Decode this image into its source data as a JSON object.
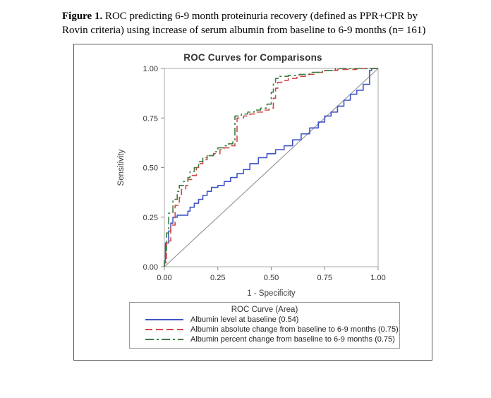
{
  "caption": {
    "label": "Figure 1.",
    "text": " ROC predicting 6-9 month proteinuria recovery (defined as PPR+CPR by Rovin criteria) using increase of serum albumin from baseline to 6-9 months (n= 161)"
  },
  "chart_data": {
    "type": "line",
    "title": "ROC Curves for Comparisons",
    "xlabel": "1 - Specificity",
    "ylabel": "Sensitivity",
    "xlim": [
      0,
      1
    ],
    "ylim": [
      0,
      1
    ],
    "xticks": [
      "0.00",
      "0.25",
      "0.50",
      "0.75",
      "1.00"
    ],
    "yticks": [
      "0.00",
      "0.25",
      "0.50",
      "0.75",
      "1.00"
    ],
    "grid": false,
    "legend_position": "bottom",
    "legend_title": "ROC Curve (Area)",
    "reference_line": {
      "from": [
        0,
        0
      ],
      "to": [
        1,
        1
      ],
      "color": "#919191"
    },
    "series": [
      {
        "name": "Albumin level at baseline (0.54)",
        "auc": 0.54,
        "color": "#3f54c5",
        "dash": "solid",
        "points": [
          [
            0,
            0
          ],
          [
            0.005,
            0.02
          ],
          [
            0.005,
            0.1
          ],
          [
            0.02,
            0.12
          ],
          [
            0.03,
            0.18
          ],
          [
            0.04,
            0.22
          ],
          [
            0.06,
            0.25
          ],
          [
            0.07,
            0.26
          ],
          [
            0.11,
            0.26
          ],
          [
            0.12,
            0.28
          ],
          [
            0.14,
            0.3
          ],
          [
            0.16,
            0.32
          ],
          [
            0.18,
            0.34
          ],
          [
            0.2,
            0.36
          ],
          [
            0.22,
            0.38
          ],
          [
            0.25,
            0.4
          ],
          [
            0.28,
            0.41
          ],
          [
            0.31,
            0.43
          ],
          [
            0.34,
            0.45
          ],
          [
            0.37,
            0.47
          ],
          [
            0.4,
            0.49
          ],
          [
            0.44,
            0.52
          ],
          [
            0.48,
            0.55
          ],
          [
            0.52,
            0.57
          ],
          [
            0.56,
            0.59
          ],
          [
            0.6,
            0.61
          ],
          [
            0.64,
            0.64
          ],
          [
            0.68,
            0.67
          ],
          [
            0.72,
            0.7
          ],
          [
            0.75,
            0.73
          ],
          [
            0.78,
            0.76
          ],
          [
            0.81,
            0.78
          ],
          [
            0.84,
            0.81
          ],
          [
            0.87,
            0.84
          ],
          [
            0.9,
            0.87
          ],
          [
            0.93,
            0.89
          ],
          [
            0.96,
            0.92
          ],
          [
            0.97,
            0.99
          ],
          [
            1,
            1
          ]
        ]
      },
      {
        "name": "Albumin absolute change from baseline to 6-9 months (0.75)",
        "auc": 0.75,
        "color": "#d04949",
        "dash": "dashed",
        "points": [
          [
            0,
            0
          ],
          [
            0.01,
            0.02
          ],
          [
            0.01,
            0.11
          ],
          [
            0.03,
            0.13
          ],
          [
            0.03,
            0.18
          ],
          [
            0.05,
            0.21
          ],
          [
            0.05,
            0.27
          ],
          [
            0.07,
            0.31
          ],
          [
            0.08,
            0.35
          ],
          [
            0.1,
            0.39
          ],
          [
            0.11,
            0.41
          ],
          [
            0.13,
            0.44
          ],
          [
            0.15,
            0.46
          ],
          [
            0.16,
            0.5
          ],
          [
            0.18,
            0.52
          ],
          [
            0.2,
            0.54
          ],
          [
            0.23,
            0.56
          ],
          [
            0.26,
            0.57
          ],
          [
            0.28,
            0.59
          ],
          [
            0.31,
            0.6
          ],
          [
            0.33,
            0.61
          ],
          [
            0.34,
            0.62
          ],
          [
            0.34,
            0.74
          ],
          [
            0.37,
            0.75
          ],
          [
            0.4,
            0.76
          ],
          [
            0.43,
            0.77
          ],
          [
            0.46,
            0.78
          ],
          [
            0.49,
            0.79
          ],
          [
            0.51,
            0.8
          ],
          [
            0.52,
            0.85
          ],
          [
            0.53,
            0.9
          ],
          [
            0.55,
            0.93
          ],
          [
            0.58,
            0.94
          ],
          [
            0.62,
            0.95
          ],
          [
            0.66,
            0.96
          ],
          [
            0.7,
            0.97
          ],
          [
            0.75,
            0.98
          ],
          [
            0.81,
            0.99
          ],
          [
            0.9,
            0.995
          ],
          [
            0.97,
            1
          ],
          [
            1,
            1
          ]
        ]
      },
      {
        "name": "Albumin percent change from baseline to 6-9 months (0.75)",
        "auc": 0.75,
        "color": "#3c7d41",
        "dash": "dashdot",
        "points": [
          [
            0,
            0
          ],
          [
            0.005,
            0.03
          ],
          [
            0.01,
            0.08
          ],
          [
            0.01,
            0.15
          ],
          [
            0.02,
            0.17
          ],
          [
            0.02,
            0.23
          ],
          [
            0.04,
            0.27
          ],
          [
            0.04,
            0.31
          ],
          [
            0.06,
            0.34
          ],
          [
            0.07,
            0.38
          ],
          [
            0.09,
            0.41
          ],
          [
            0.11,
            0.43
          ],
          [
            0.12,
            0.45
          ],
          [
            0.14,
            0.48
          ],
          [
            0.16,
            0.5
          ],
          [
            0.18,
            0.53
          ],
          [
            0.2,
            0.55
          ],
          [
            0.23,
            0.56
          ],
          [
            0.25,
            0.58
          ],
          [
            0.28,
            0.6
          ],
          [
            0.3,
            0.61
          ],
          [
            0.32,
            0.62
          ],
          [
            0.33,
            0.63
          ],
          [
            0.33,
            0.75
          ],
          [
            0.36,
            0.76
          ],
          [
            0.39,
            0.77
          ],
          [
            0.42,
            0.78
          ],
          [
            0.45,
            0.79
          ],
          [
            0.48,
            0.8
          ],
          [
            0.5,
            0.82
          ],
          [
            0.51,
            0.88
          ],
          [
            0.52,
            0.93
          ],
          [
            0.54,
            0.95
          ],
          [
            0.58,
            0.96
          ],
          [
            0.63,
            0.965
          ],
          [
            0.68,
            0.97
          ],
          [
            0.74,
            0.98
          ],
          [
            0.8,
            0.99
          ],
          [
            0.88,
            1
          ],
          [
            1,
            1
          ]
        ]
      }
    ]
  }
}
